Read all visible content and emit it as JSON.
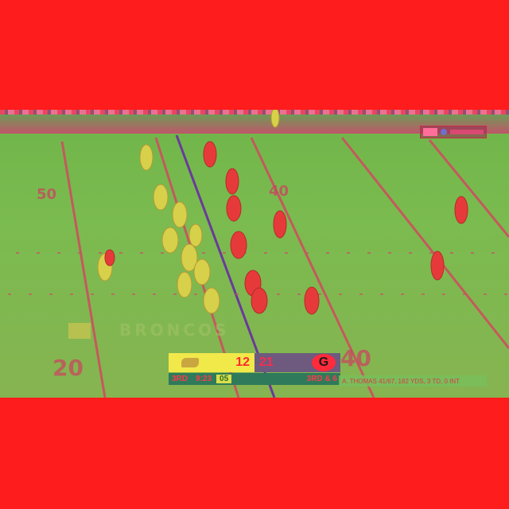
{
  "scorebug": {
    "home_score": "12",
    "away_score": "21",
    "away_logo_letter": "G",
    "quarter": "3RD",
    "game_clock": "9:23",
    "play_clock": "05",
    "down_distance": "3RD & 6"
  },
  "ticker": {
    "text": "A. THOMAS 41/67, 182 YDS, 3 TD, 0 INT"
  },
  "field": {
    "yard_numbers": [
      "50",
      "40",
      "20",
      "40"
    ],
    "endzone_text": "BRONCOS"
  },
  "colors": {
    "letterbox": "#ff1c1c",
    "field": "#7bbb4f",
    "home_panel": "#f1e84a",
    "away_panel": "#6e5a7f"
  }
}
